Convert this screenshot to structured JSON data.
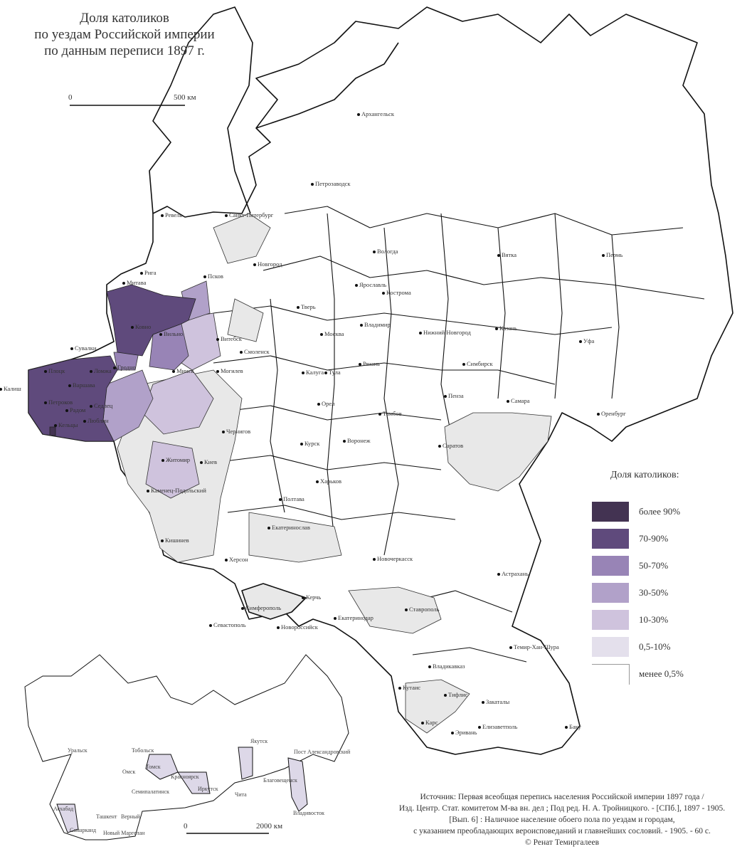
{
  "title": [
    "Доля католиков",
    "по уездам Российской империи",
    "по данным переписи 1897 г."
  ],
  "scale_main": {
    "start": "0",
    "end": "500 км"
  },
  "scale_inset": {
    "start": "0",
    "end": "2000 км"
  },
  "legend": {
    "title": "Доля католиков:",
    "items": [
      {
        "label": "более 90%",
        "color": "#433352"
      },
      {
        "label": "70-90%",
        "color": "#5f4a7c"
      },
      {
        "label": "50-70%",
        "color": "#9884b6"
      },
      {
        "label": "30-50%",
        "color": "#b1a1c9"
      },
      {
        "label": "10-30%",
        "color": "#cfc3dd"
      },
      {
        "label": "0,5-10%",
        "color": "#e4e0ec"
      },
      {
        "label": "менее 0,5%",
        "color": "#ffffff"
      }
    ]
  },
  "cities": [
    "Архангельск",
    "Петрозаводск",
    "Санкт-Петербург",
    "Ревель",
    "Новгород",
    "Псков",
    "Рига",
    "Митава",
    "Вологда",
    "Вятка",
    "Пермь",
    "Ярославль",
    "Кострома",
    "Тверь",
    "Витебск",
    "Ковно",
    "Вильно",
    "Сувалки",
    "Смоленск",
    "Москва",
    "Владимир",
    "Нижний Новгород",
    "Казань",
    "Уфа",
    "Гродно",
    "Минск",
    "Могилев",
    "Калуга",
    "Тула",
    "Рязань",
    "Симбирск",
    "Калиш",
    "Варшава",
    "Петроков",
    "Седлец",
    "Ломжа",
    "Плоцк",
    "Радом",
    "Люблин",
    "Кельцы",
    "Пенза",
    "Самара",
    "Оренбург",
    "Орел",
    "Тамбов",
    "Чернигов",
    "Курск",
    "Воронеж",
    "Саратов",
    "Житомир",
    "Киев",
    "Харьков",
    "Каменец-Подольский",
    "Полтава",
    "Екатеринослав",
    "Кишинев",
    "Новочеркасск",
    "Астрахань",
    "Херсон",
    "Симферополь",
    "Керчь",
    "Севастополь",
    "Новороссийск",
    "Екатеринодар",
    "Ставрополь",
    "Владикавказ",
    "Темир-Хан-Шура",
    "Кутаис",
    "Тифлис",
    "Закаталы",
    "Баку",
    "Карс",
    "Эривань",
    "Елизаветполь"
  ],
  "inset_cities": [
    "Уральск",
    "Тобольск",
    "Омск",
    "Томск",
    "Красноярск",
    "Иркутск",
    "Семипалатинск",
    "Якутск",
    "Чита",
    "Благовещенск",
    "Пост Александровский",
    "Владивосток",
    "Асхабад",
    "Ташкент",
    "Верный",
    "Самарканд",
    "Новый Маргелан"
  ],
  "source": [
    "Источник: Первая всеобщая перепись населения Российской империи 1897 года  /",
    "Изд. Центр. Стат. комитетом М-ва вн. дел ; Под ред. Н. А. Тройницкого. - [СПб.], 1897 - 1905.",
    "[Вып. 6] : Наличное население обоего пола по уездам и городам,",
    "с указанием преобладающих вероисповеданий и главнейших сословий. - 1905. - 60 с.",
    "© Ренат Темиргалеев"
  ]
}
